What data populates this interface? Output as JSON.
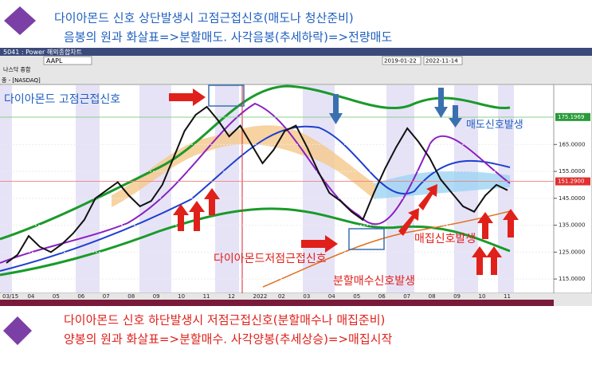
{
  "header": {
    "line1": "다이아몬드 신호 상단발생시 고점근접신호(매도나 청산준비)",
    "line2": "음봉의 원과 화살표=>분할매도. 사각음봉(추세하락)=>전량매도"
  },
  "toolbar": {
    "window_title": "5041 : Power 해외종합차트",
    "symbol": "AAPL",
    "exchange": "나스닥 종합",
    "date_from": "2019-01-22",
    "date_to": "2022-11-14",
    "legend": "종 - [NASDAQ]"
  },
  "chart": {
    "annotations": [
      {
        "text": "다이아몬드 고점근접신호",
        "color": "#1f5fbf"
      },
      {
        "text": "매도신호발생",
        "color": "#1f5fbf"
      },
      {
        "text": "다이아몬드저점근접신호",
        "color": "#e0201a"
      },
      {
        "text": "매집신호발생",
        "color": "#e0201a"
      },
      {
        "text": "분할매수신호발생",
        "color": "#e0201a"
      }
    ],
    "ylim": [
      110,
      187
    ],
    "yticks": [
      {
        "value": 115,
        "label": "115.0000"
      },
      {
        "value": 125,
        "label": "125.0000"
      },
      {
        "value": 135,
        "label": "135.0000"
      },
      {
        "value": 145,
        "label": "145.0000"
      },
      {
        "value": 155,
        "label": "155.0000"
      },
      {
        "value": 165,
        "label": "165.0000"
      }
    ],
    "highlight_tag": 175.1969,
    "price_tag": {
      "value": 151.29,
      "label": "151.2900"
    },
    "xlabels": [
      "03/15",
      "04",
      "05",
      "06",
      "07",
      "08",
      "09",
      "10",
      "11",
      "12",
      "2022",
      "02",
      "03",
      "04",
      "05",
      "06",
      "07",
      "08",
      "09",
      "10",
      "11"
    ],
    "close": [
      121,
      124,
      131,
      127,
      125,
      128,
      132,
      137,
      145,
      148,
      151,
      146,
      142,
      144,
      150,
      160,
      170,
      176,
      179,
      174,
      168,
      172,
      165,
      158,
      163,
      170,
      172,
      164,
      155,
      147,
      144,
      140,
      137,
      147,
      156,
      164,
      171,
      166,
      160,
      152,
      147,
      142,
      140,
      146,
      150,
      148
    ]
  },
  "footer": {
    "line1": "다이아몬드 신호 하단발생시 저점근접신호(분할매수나 매집준비)",
    "line2": "양봉의 원과 화살표=>분할매수. 사각양봉(추세상승)=>매집시작"
  }
}
